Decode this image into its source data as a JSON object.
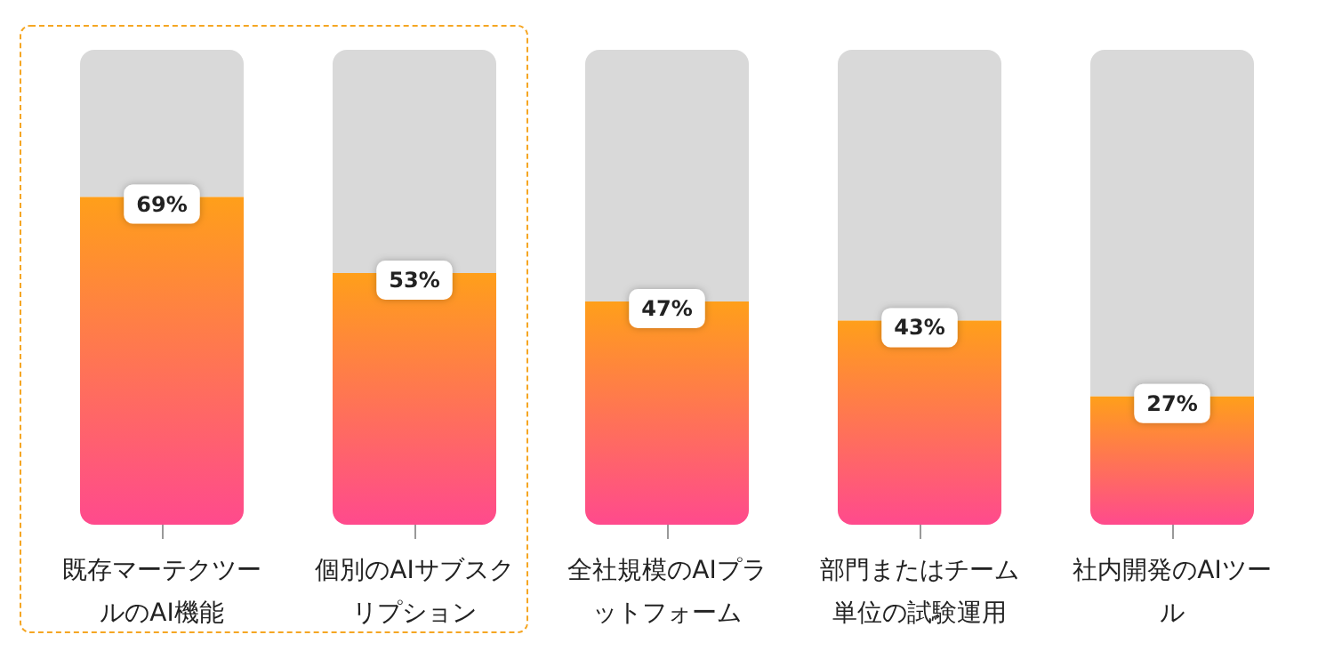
{
  "chart_data": {
    "type": "bar",
    "categories": [
      "既存マーテクツールのAI機能",
      "個別のAIサブスクリプション",
      "全社規模のAIプラットフォーム",
      "部門またはチーム単位の試験運用",
      "社内開発のAIツール"
    ],
    "stacked": true,
    "series": [
      {
        "color": "#ff9f1a",
        "values": [
          69,
          53,
          47,
          43,
          27
        ],
        "value_labels": [
          "69%",
          "53%",
          "47%",
          "43%",
          "27%"
        ]
      },
      {
        "color": "#d9d9d9",
        "values": [
          31,
          47,
          53,
          57,
          73
        ]
      }
    ]
  }
}
